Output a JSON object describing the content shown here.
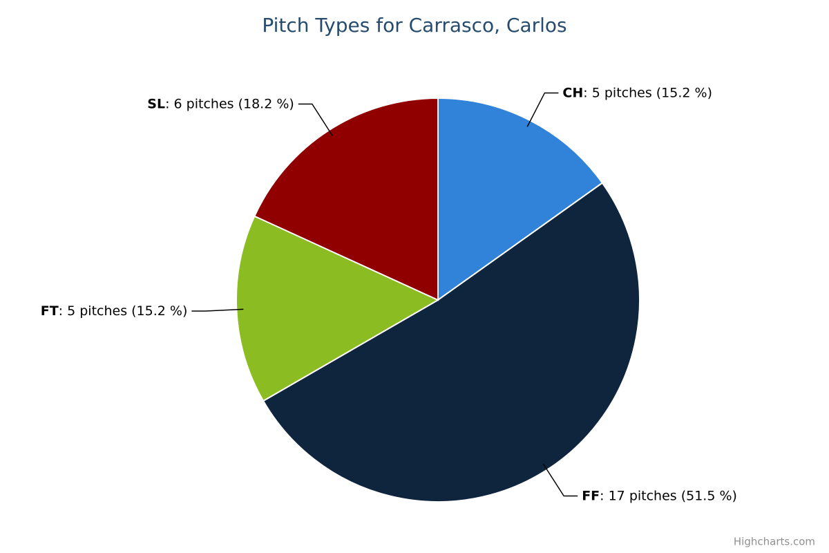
{
  "chart_data": {
    "type": "pie",
    "title": "Pitch Types for Carrasco, Carlos",
    "categories": [
      "CH",
      "FF",
      "FT",
      "SL"
    ],
    "values": [
      5,
      17,
      5,
      6
    ],
    "value_labels": [
      ": 5 pitches (15.2 %)",
      ": 17 pitches (51.5 %)",
      ": 5 pitches (15.2 %)",
      ": 6 pitches (18.2 %)"
    ],
    "colors": [
      "#3182d9",
      "#0f243d",
      "#8bbc21",
      "#910000"
    ],
    "credit": "Highcharts.com"
  }
}
